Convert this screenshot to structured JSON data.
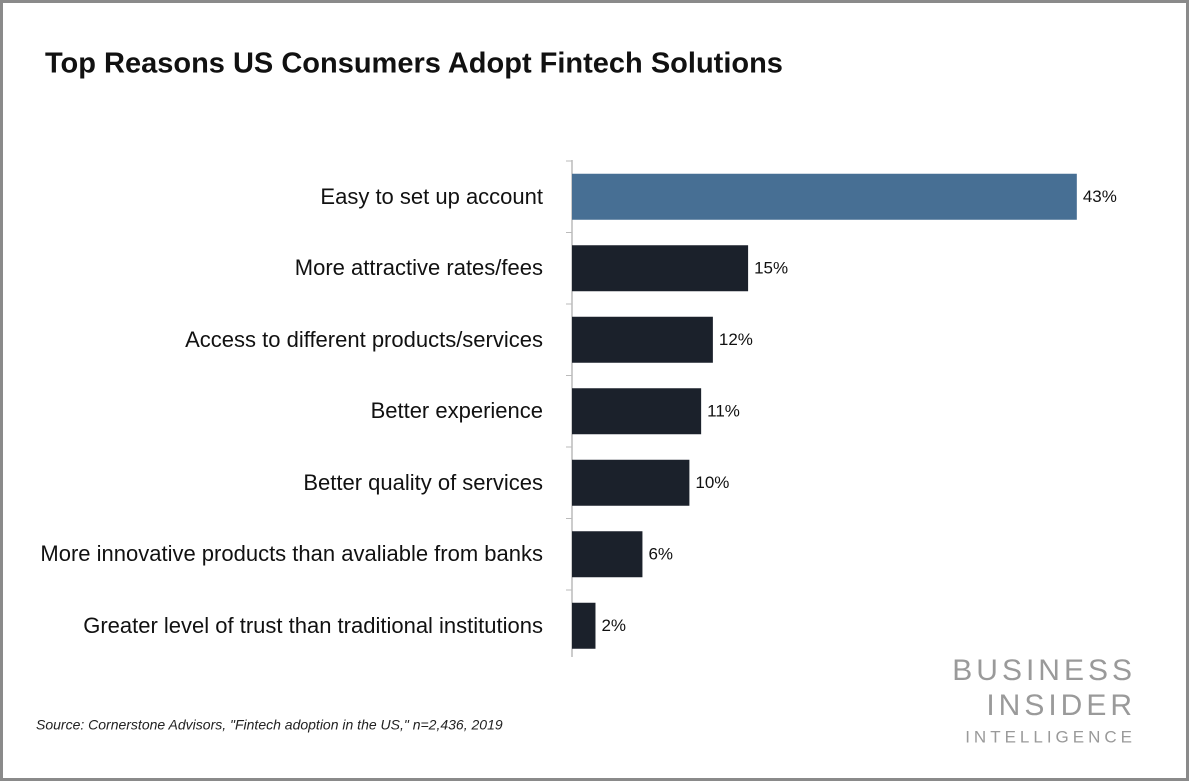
{
  "chart_data": {
    "type": "bar",
    "orientation": "horizontal",
    "title": "Top Reasons US Consumers Adopt Fintech Solutions",
    "categories": [
      "Easy to set up account",
      "More attractive rates/fees",
      "Access to different products/services",
      "Better experience",
      "Better quality of services",
      "More innovative products than avaliable from banks",
      "Greater level of trust than traditional institutions"
    ],
    "values": [
      43,
      15,
      12,
      11,
      10,
      6,
      2
    ],
    "value_labels": [
      "43%",
      "15%",
      "12%",
      "11%",
      "10%",
      "6%",
      "2%"
    ],
    "colors": [
      "#476f94",
      "#1b212b",
      "#1b212b",
      "#1b212b",
      "#1b212b",
      "#1b212b",
      "#1b212b"
    ],
    "source": "Source: Cornerstone Advisors, \"Fintech adoption in the US,\" n=2,436, 2019",
    "logo": [
      "BUSINESS",
      "INSIDER",
      "INTELLIGENCE"
    ]
  }
}
